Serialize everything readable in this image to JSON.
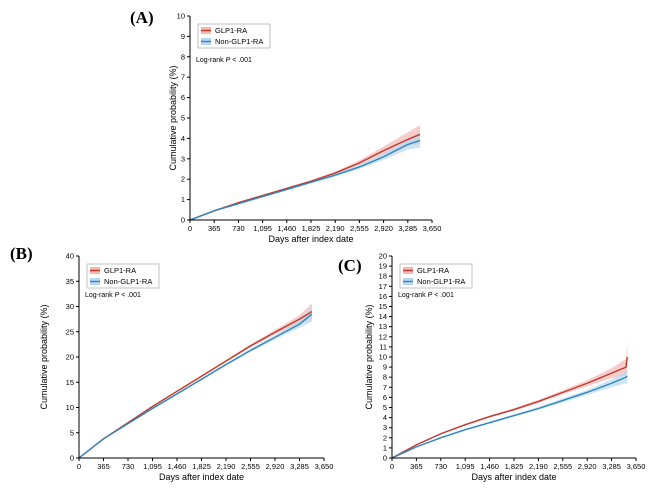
{
  "chart_data": [
    {
      "panel": "(A)",
      "type": "line",
      "ylabel": "Cumulative probability (%)",
      "xlabel": "Days after index date",
      "xticks": [
        0,
        365,
        730,
        1095,
        1460,
        1825,
        2190,
        2555,
        2920,
        3285,
        3650
      ],
      "xtick_labels": [
        "0",
        "365",
        "730",
        "1,095",
        "1,460",
        "1,825",
        "2,190",
        "2,555",
        "2,920",
        "3,285",
        "3,650"
      ],
      "yticks": [
        0,
        1,
        2,
        3,
        4,
        5,
        6,
        7,
        8,
        9,
        10
      ],
      "xlim": [
        0,
        3650
      ],
      "ylim": [
        0,
        10
      ],
      "grid": false,
      "legend_position": "top-left",
      "annotation": {
        "prefix": "Log-rank ",
        "p": "P",
        "suffix": " < .001"
      },
      "series": [
        {
          "name": "GLP1-RA",
          "color": "#c0392b",
          "band_color": "#f2b8b3",
          "x": [
            0,
            365,
            730,
            1095,
            1460,
            1825,
            2190,
            2555,
            2920,
            3285,
            3470
          ],
          "y": [
            0,
            0.45,
            0.85,
            1.2,
            1.55,
            1.9,
            2.3,
            2.8,
            3.4,
            3.95,
            4.2
          ],
          "ci_width": [
            0,
            0.02,
            0.03,
            0.04,
            0.05,
            0.06,
            0.08,
            0.12,
            0.2,
            0.35,
            0.45
          ]
        },
        {
          "name": "Non-GLP1-RA",
          "color": "#2e86c1",
          "band_color": "#b6d9f0",
          "x": [
            0,
            365,
            730,
            1095,
            1460,
            1825,
            2190,
            2555,
            2920,
            3285,
            3470
          ],
          "y": [
            0,
            0.45,
            0.8,
            1.15,
            1.5,
            1.85,
            2.2,
            2.6,
            3.1,
            3.7,
            3.9
          ],
          "ci_width": [
            0,
            0.02,
            0.03,
            0.04,
            0.05,
            0.06,
            0.08,
            0.1,
            0.15,
            0.25,
            0.35
          ]
        }
      ]
    },
    {
      "panel": "(B)",
      "type": "line",
      "ylabel": "Cumulative probability (%)",
      "xlabel": "Days after index date",
      "xticks": [
        0,
        365,
        730,
        1095,
        1460,
        1825,
        2190,
        2555,
        2920,
        3285,
        3650
      ],
      "xtick_labels": [
        "0",
        "365",
        "730",
        "1,095",
        "1,460",
        "1,825",
        "2,190",
        "2,555",
        "2,920",
        "3,285",
        "3,650"
      ],
      "yticks": [
        0,
        5,
        10,
        15,
        20,
        25,
        30,
        35,
        40
      ],
      "xlim": [
        0,
        3650
      ],
      "ylim": [
        0,
        40
      ],
      "grid": false,
      "legend_position": "top-left",
      "annotation": {
        "prefix": "Log-rank ",
        "p": "P",
        "suffix": " < .001"
      },
      "series": [
        {
          "name": "GLP1-RA",
          "color": "#c0392b",
          "band_color": "#f2b8b3",
          "x": [
            0,
            365,
            730,
            1095,
            1460,
            1825,
            2190,
            2555,
            2920,
            3285,
            3470
          ],
          "y": [
            0,
            3.8,
            7.0,
            10.2,
            13.2,
            16.2,
            19.2,
            22.2,
            24.9,
            27.5,
            29.0
          ],
          "ci_width": [
            0,
            0.1,
            0.12,
            0.15,
            0.18,
            0.2,
            0.25,
            0.3,
            0.45,
            0.8,
            1.6
          ]
        },
        {
          "name": "Non-GLP1-RA",
          "color": "#2e86c1",
          "band_color": "#b6d9f0",
          "x": [
            0,
            365,
            730,
            1095,
            1460,
            1825,
            2190,
            2555,
            2920,
            3285,
            3470
          ],
          "y": [
            0,
            3.8,
            6.8,
            9.8,
            12.7,
            15.6,
            18.5,
            21.3,
            23.9,
            26.5,
            28.5
          ],
          "ci_width": [
            0,
            0.1,
            0.12,
            0.15,
            0.18,
            0.2,
            0.25,
            0.3,
            0.4,
            0.7,
            1.5
          ]
        }
      ]
    },
    {
      "panel": "(C)",
      "type": "line",
      "ylabel": "Cumulative probability (%)",
      "xlabel": "Days after index date",
      "xticks": [
        0,
        365,
        730,
        1095,
        1460,
        1825,
        2190,
        2555,
        2920,
        3285,
        3650
      ],
      "xtick_labels": [
        "0",
        "365",
        "730",
        "1,095",
        "1,460",
        "1,825",
        "2,190",
        "2,555",
        "2,920",
        "3,285",
        "3,650"
      ],
      "yticks": [
        0,
        1,
        2,
        3,
        4,
        5,
        6,
        7,
        8,
        9,
        10,
        11,
        12,
        13,
        14,
        15,
        16,
        17,
        18,
        19,
        20
      ],
      "xlim": [
        0,
        3650
      ],
      "ylim": [
        0,
        20
      ],
      "grid": false,
      "legend_position": "top-left",
      "annotation": {
        "prefix": "Log-rank ",
        "p": "P",
        "suffix": " < .001"
      },
      "series": [
        {
          "name": "GLP1-RA",
          "color": "#c0392b",
          "band_color": "#f2b8b3",
          "x": [
            0,
            365,
            730,
            1095,
            1460,
            1825,
            2190,
            2555,
            2920,
            3285,
            3500,
            3520
          ],
          "y": [
            0,
            1.3,
            2.4,
            3.3,
            4.1,
            4.8,
            5.6,
            6.5,
            7.4,
            8.4,
            9.0,
            10.0
          ],
          "ci_width": [
            0,
            0.05,
            0.06,
            0.08,
            0.1,
            0.12,
            0.15,
            0.2,
            0.3,
            0.5,
            0.8,
            1.6
          ]
        },
        {
          "name": "Non-GLP1-RA",
          "color": "#2e86c1",
          "band_color": "#b6d9f0",
          "x": [
            0,
            365,
            730,
            1095,
            1460,
            1825,
            2190,
            2555,
            2920,
            3285,
            3500,
            3520
          ],
          "y": [
            0,
            1.1,
            2.0,
            2.8,
            3.5,
            4.2,
            4.9,
            5.7,
            6.5,
            7.4,
            8.0,
            8.1
          ],
          "ci_width": [
            0,
            0.05,
            0.06,
            0.08,
            0.1,
            0.12,
            0.15,
            0.2,
            0.25,
            0.4,
            0.6,
            0.8
          ]
        }
      ]
    }
  ]
}
